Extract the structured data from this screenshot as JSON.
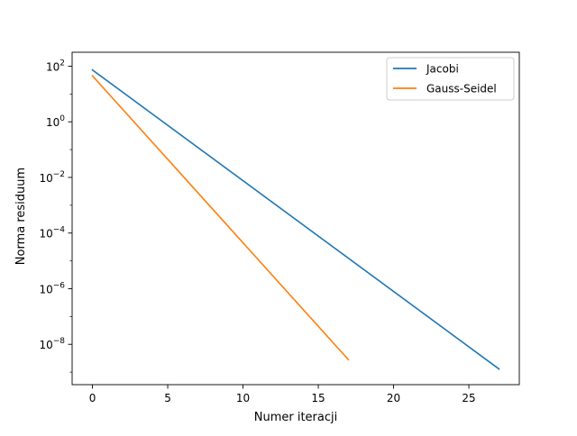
{
  "chart_data": {
    "type": "line",
    "title": "",
    "xlabel": "Numer iteracji",
    "ylabel": "Norma residuum",
    "xlim": [
      -1.35,
      28.35
    ],
    "ylim_log10": [
      -9.45,
      2.5
    ],
    "y_scale": "log",
    "grid": false,
    "legend_position": "upper-right",
    "x_ticks": [
      0,
      5,
      10,
      15,
      20,
      25
    ],
    "y_ticks": [
      {
        "exp": 2,
        "label_base": "10",
        "label_exp": "2"
      },
      {
        "exp": 0,
        "label_base": "10",
        "label_exp": "0"
      },
      {
        "exp": -2,
        "label_base": "10",
        "label_exp": "−2"
      },
      {
        "exp": -4,
        "label_base": "10",
        "label_exp": "−4"
      },
      {
        "exp": -6,
        "label_base": "10",
        "label_exp": "−6"
      },
      {
        "exp": -8,
        "label_base": "10",
        "label_exp": "−8"
      }
    ],
    "series": [
      {
        "name": "Jacobi",
        "color": "#1f77b4",
        "x": [
          0,
          27
        ],
        "y": [
          73,
          1.3e-09
        ]
      },
      {
        "name": "Gauss-Seidel",
        "color": "#ff7f0e",
        "x": [
          0,
          17
        ],
        "y": [
          45,
          2.8e-09
        ]
      }
    ]
  }
}
